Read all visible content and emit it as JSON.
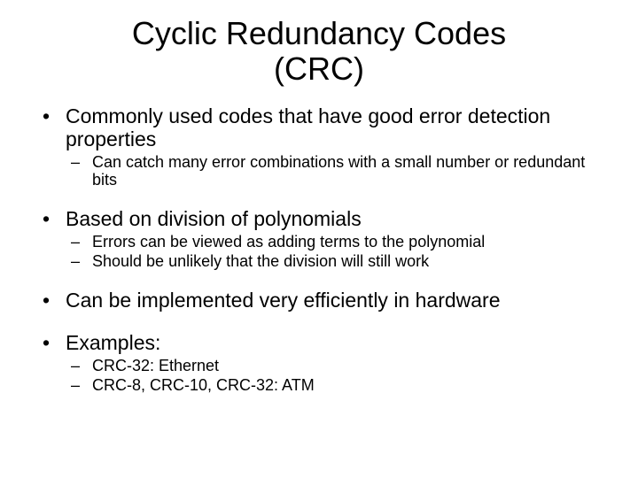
{
  "slide": {
    "background_color": "#ffffff",
    "text_color": "#000000",
    "font_family": "Comic Sans MS",
    "title": {
      "line1": "Cyclic Redundancy Codes",
      "line2": "(CRC)",
      "fontsize": 36,
      "align": "center"
    },
    "bullets": [
      {
        "text": "Commonly used codes that have good error detection properties",
        "sub": [
          "Can catch many error combinations with a small number or redundant bits"
        ]
      },
      {
        "text": "Based on division of polynomials",
        "sub": [
          "Errors can be viewed as adding terms to the polynomial",
          "Should be unlikely that the division will still work"
        ]
      },
      {
        "text": "Can be implemented very efficiently in hardware",
        "sub": []
      },
      {
        "text": "Examples:",
        "sub": [
          "CRC-32: Ethernet",
          "CRC-8, CRC-10, CRC-32: ATM"
        ]
      }
    ],
    "level1_fontsize": 23,
    "level2_fontsize": 18
  }
}
